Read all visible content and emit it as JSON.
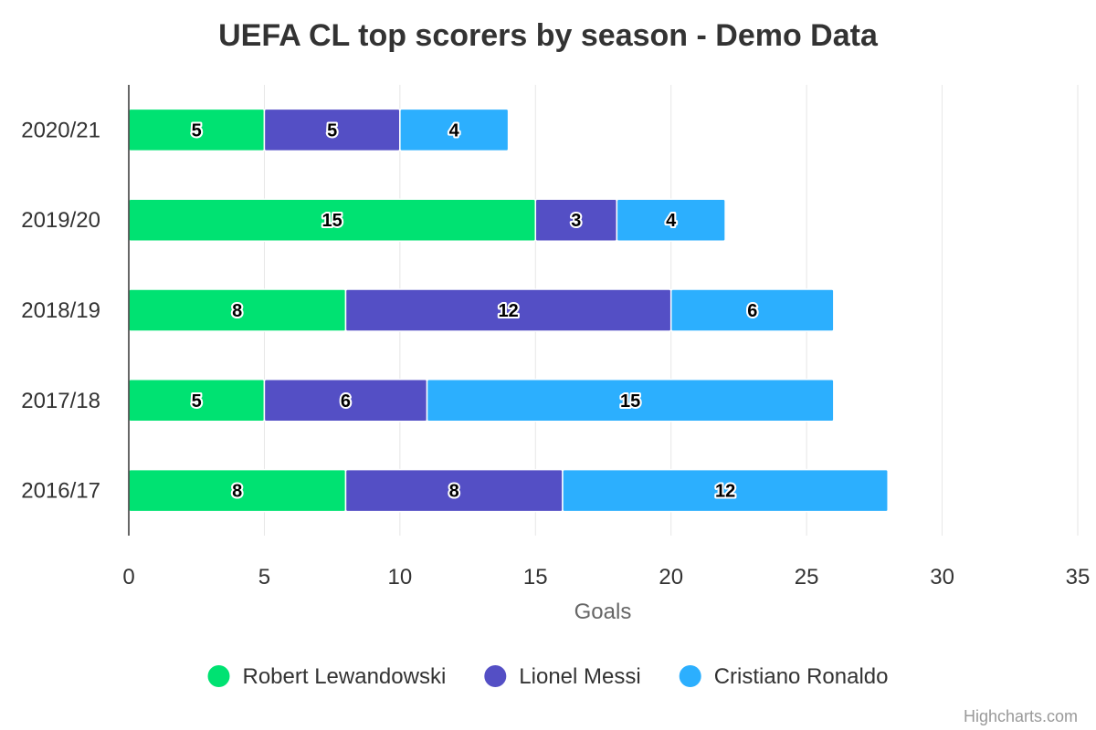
{
  "chart_data": {
    "type": "bar",
    "orientation": "horizontal",
    "stacked": true,
    "title": "UEFA CL top scorers by season - Demo Data",
    "categories": [
      "2020/21",
      "2019/20",
      "2018/19",
      "2017/18",
      "2016/17"
    ],
    "series": [
      {
        "name": "Robert Lewandowski",
        "color": "#00E272",
        "values": [
          5,
          15,
          8,
          5,
          8
        ]
      },
      {
        "name": "Lionel Messi",
        "color": "#544FC5",
        "values": [
          5,
          3,
          12,
          6,
          8
        ]
      },
      {
        "name": "Cristiano Ronaldo",
        "color": "#2CAFFE",
        "values": [
          4,
          4,
          6,
          15,
          12
        ]
      }
    ],
    "xlabel": "Goals",
    "xlim": [
      0,
      35
    ],
    "xticks": [
      "0",
      "5",
      "10",
      "15",
      "20",
      "25",
      "30",
      "35"
    ],
    "grid": true,
    "legend_position": "bottom",
    "data_labels": true
  },
  "credits": "Highcharts.com"
}
